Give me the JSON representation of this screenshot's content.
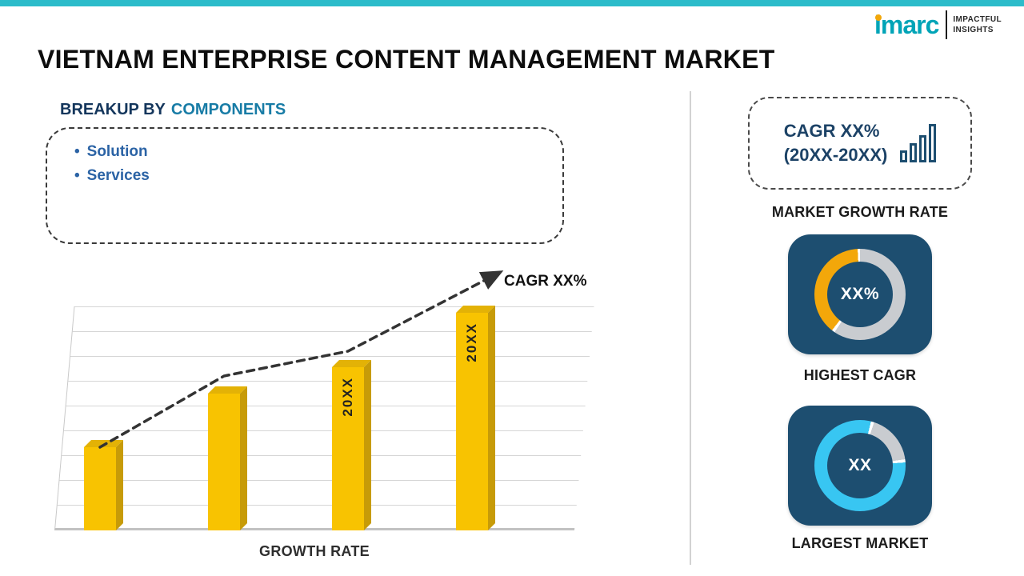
{
  "colors": {
    "accent_teal": "#2cbcca",
    "logo_teal": "#00a4b7",
    "logo_dot_gold": "#f2a70a",
    "heading_navy": "#14365c",
    "heading_highlight_blue": "#187ca6",
    "bullet_blue": "#2b63a5",
    "bar_yellow": "#f8c301",
    "tile_navy": "#1d4e70",
    "donut_gold": "#f3a70a",
    "donut_cyan": "#38c6f2",
    "donut_gray": "#c9ccd0",
    "trend_dark": "#333333"
  },
  "header": {
    "title": "VIETNAM ENTERPRISE CONTENT MANAGEMENT MARKET",
    "logo": {
      "brand": "imarc",
      "tagline_line1": "IMPACTFUL",
      "tagline_line2": "INSIGHTS"
    }
  },
  "breakup": {
    "title_prefix": "BREAKUP BY",
    "title_highlight": "COMPONENTS",
    "items": [
      "Solution",
      "Services"
    ]
  },
  "chart_data": {
    "type": "bar",
    "title": "",
    "categories": [
      "",
      "",
      "20XX",
      "20XX"
    ],
    "values": [
      37,
      61,
      73,
      97
    ],
    "value_unit": "relative-height-percent (no numeric axis shown)",
    "ylim": [
      0,
      100
    ],
    "xlabel": "GROWTH RATE",
    "ylabel": "",
    "annotation": "CAGR XX%",
    "grid": true,
    "legend": false,
    "trend": "increasing dashed arrow"
  },
  "sidebar": {
    "growth_card": {
      "line1": "CAGR XX%",
      "line2": "(20XX-20XX)"
    },
    "growth_caption": "MARKET GROWTH RATE",
    "highest_cagr": {
      "value": "XX%",
      "caption": "HIGHEST CAGR",
      "segment_color": "#f3a70a"
    },
    "largest_market": {
      "value": "XX",
      "caption": "LARGEST MARKET",
      "segment_color": "#38c6f2"
    }
  }
}
